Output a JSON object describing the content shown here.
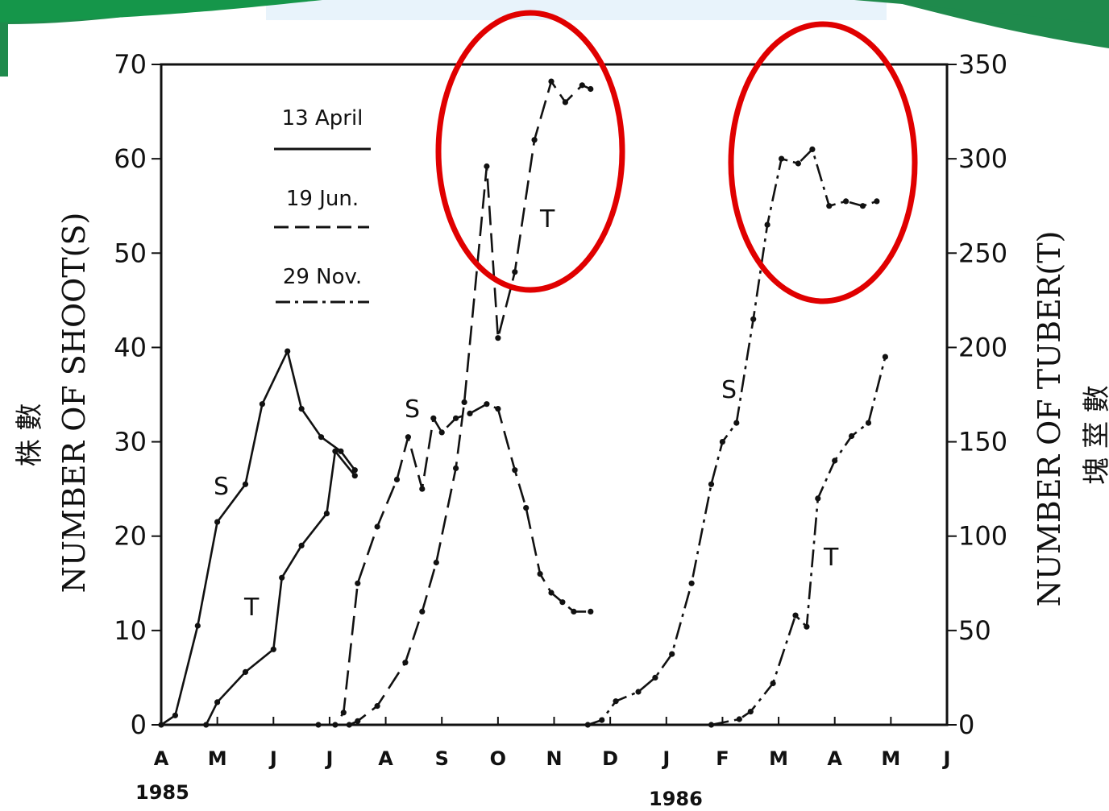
{
  "chart_data": {
    "type": "line",
    "ylabel_left": "NUMBER OF SHOOT(S)",
    "ylabel_right": "NUMBER OF TUBER(T)",
    "ylabel_left_cjk": "株 數",
    "ylabel_right_cjk": "塊 莖 數",
    "ylim_left": [
      0,
      70
    ],
    "ylim_right": [
      0,
      350
    ],
    "yticks_left": [
      "0",
      "10",
      "20",
      "30",
      "40",
      "50",
      "60",
      "70"
    ],
    "yticks_right": [
      "0",
      "50",
      "100",
      "150",
      "200",
      "250",
      "300",
      "350"
    ],
    "x_months": [
      "A",
      "M",
      "J",
      "J",
      "A",
      "S",
      "O",
      "N",
      "D",
      "J",
      "F",
      "M",
      "A",
      "M",
      "J"
    ],
    "x_years": [
      "1985",
      "1986"
    ],
    "legend": [
      {
        "label": "13 April",
        "style": "solid"
      },
      {
        "label": "19 Jun.",
        "style": "dashed"
      },
      {
        "label": "29 Nov.",
        "style": "dashdot"
      }
    ],
    "series": [
      {
        "name": "13 April",
        "label": "S",
        "axis": "left",
        "style": "solid",
        "x": [
          0,
          0.25,
          0.65,
          1.0,
          1.5,
          1.8,
          2.25,
          2.5,
          2.85,
          3.2,
          3.45
        ],
        "y": [
          0,
          1,
          10.5,
          21.5,
          25.5,
          34,
          39.6,
          33.5,
          30.5,
          29,
          27
        ]
      },
      {
        "name": "13 April",
        "label": "T",
        "axis": "right",
        "style": "solid",
        "x": [
          0.8,
          1.0,
          1.5,
          2.0,
          2.15,
          2.5,
          2.95,
          3.1,
          3.45
        ],
        "y": [
          0,
          12,
          28,
          40,
          78,
          95,
          112,
          145,
          132
        ]
      },
      {
        "name": "19 Jun.",
        "label": "S",
        "axis": "left",
        "style": "dashed",
        "x": [
          2.8,
          3.1,
          3.25,
          3.5,
          3.85,
          4.2,
          4.4,
          4.65,
          4.85,
          5.0,
          5.25,
          5.5,
          5.8,
          6.0,
          6.3,
          6.5,
          6.75,
          6.95,
          7.15,
          7.35,
          7.65
        ],
        "y": [
          0,
          0,
          1.3,
          15,
          21,
          26,
          30.5,
          25,
          32.5,
          31,
          32.5,
          33,
          34,
          33.5,
          27,
          23,
          16,
          14,
          13,
          12,
          12
        ]
      },
      {
        "name": "19 Jun.",
        "label": "T",
        "axis": "right",
        "style": "dashed",
        "x": [
          3.35,
          3.5,
          3.85,
          4.35,
          4.65,
          4.9,
          5.25,
          5.4,
          5.8,
          6.0,
          6.3,
          6.65,
          6.95,
          7.2,
          7.5,
          7.65
        ],
        "y": [
          0,
          2,
          10,
          33,
          60,
          86,
          136,
          171,
          296,
          205,
          240,
          310,
          341,
          330,
          339,
          337
        ]
      },
      {
        "name": "29 Nov.",
        "label": "S",
        "axis": "left",
        "style": "dashdot",
        "x": [
          7.6,
          7.85,
          8.1,
          8.5,
          8.8,
          9.1,
          9.45,
          9.8,
          10.0,
          10.25,
          10.55,
          10.8,
          11.05,
          11.35,
          11.6,
          11.9,
          12.2,
          12.5,
          12.75
        ],
        "y": [
          0,
          0.5,
          2.5,
          3.5,
          5,
          7.5,
          15,
          25.5,
          30,
          32,
          43,
          53,
          60,
          59.5,
          61,
          55,
          55.5,
          55,
          55.5
        ]
      },
      {
        "name": "29 Nov.",
        "label": "T",
        "axis": "right",
        "style": "dashdot",
        "x": [
          9.8,
          10.3,
          10.5,
          10.9,
          11.3,
          11.5,
          11.7,
          12.0,
          12.3,
          12.6,
          12.9
        ],
        "y": [
          0,
          3,
          7,
          22,
          58,
          52,
          120,
          140,
          153,
          160,
          195
        ]
      }
    ]
  }
}
